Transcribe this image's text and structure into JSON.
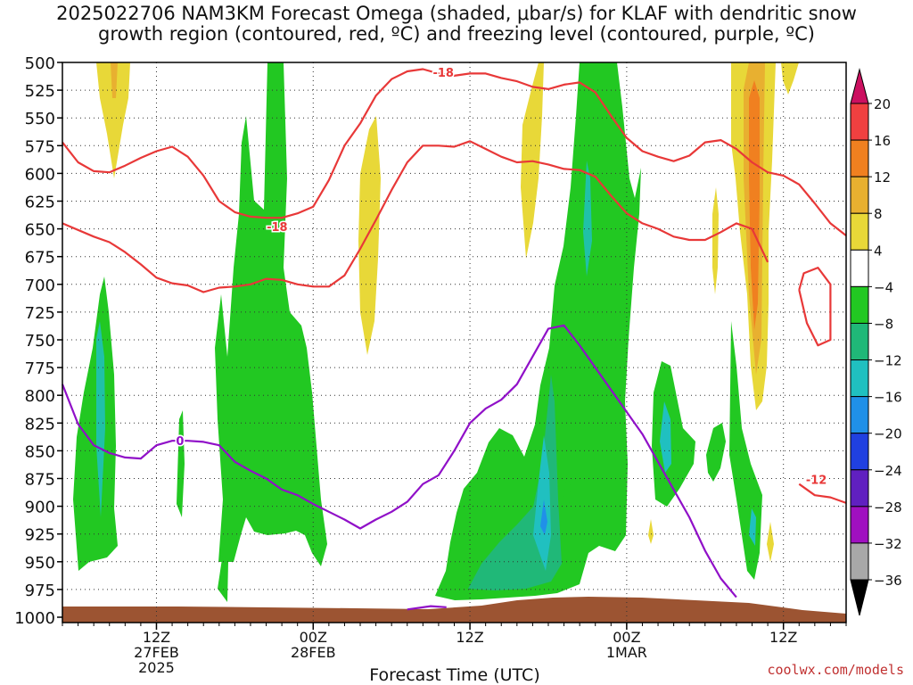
{
  "title_line1": "2025022706 NAM3KM Forecast Omega (shaded, μbar/s) for KLAF with dendritic snow",
  "title_line2": "growth region (contoured, red, ºC) and freezing level (contoured, purple, ºC)",
  "credit": "coolwx.com/models",
  "chart_data": {
    "type": "time-height contour plot",
    "xlabel": "Forecast Time (UTC)",
    "x_range_hours": [
      6,
      56
    ],
    "x_ticks": [
      {
        "hour": 12,
        "lines": [
          "12Z",
          "27FEB",
          "2025"
        ]
      },
      {
        "hour": 22,
        "lines": [
          "00Z",
          "28FEB"
        ]
      },
      {
        "hour": 32,
        "lines": [
          "12Z"
        ]
      },
      {
        "hour": 42,
        "lines": [
          "00Z",
          "1MAR"
        ]
      },
      {
        "hour": 52,
        "lines": [
          "12Z"
        ]
      }
    ],
    "y_range_hpa": [
      500,
      1000
    ],
    "y_ticks": [
      500,
      525,
      550,
      575,
      600,
      625,
      650,
      675,
      700,
      725,
      750,
      775,
      800,
      825,
      850,
      875,
      900,
      925,
      950,
      975,
      1000
    ],
    "grid": "dotted",
    "colorbar": {
      "levels": [
        20,
        16,
        12,
        8,
        4,
        -4,
        -8,
        -12,
        -16,
        -20,
        -24,
        -28,
        -32,
        -36
      ],
      "colors": [
        "#cc1060",
        "#f04040",
        "#f08020",
        "#e8b030",
        "#e8d838",
        "#ffffff",
        "#22c822",
        "#20b878",
        "#20c0c0",
        "#2090e8",
        "#2040e0",
        "#6020c0",
        "#a010c0",
        "#a8a8a8",
        "#000000"
      ]
    },
    "red_contours": [
      {
        "label": "-18",
        "label_pos": [
          19.7,
          648
        ],
        "points": [
          [
            6,
            645
          ],
          [
            8,
            657
          ],
          [
            9,
            662
          ],
          [
            10,
            671
          ],
          [
            11,
            682
          ],
          [
            12,
            694
          ],
          [
            13,
            699
          ],
          [
            14,
            701
          ],
          [
            15,
            707
          ],
          [
            16,
            703
          ],
          [
            17,
            702
          ],
          [
            18,
            700
          ],
          [
            19,
            695
          ],
          [
            20,
            696
          ],
          [
            21,
            700
          ],
          [
            22,
            702
          ],
          [
            23,
            702
          ],
          [
            24,
            692
          ],
          [
            25,
            668
          ],
          [
            26,
            642
          ],
          [
            27,
            615
          ],
          [
            28,
            590
          ],
          [
            29,
            575
          ],
          [
            30,
            575
          ],
          [
            31,
            576
          ],
          [
            32,
            571
          ],
          [
            33,
            578
          ],
          [
            34,
            585
          ],
          [
            35,
            590
          ],
          [
            36,
            589
          ],
          [
            37,
            592
          ],
          [
            38,
            596
          ],
          [
            39,
            597
          ],
          [
            40,
            603
          ],
          [
            41,
            620
          ],
          [
            42,
            636
          ],
          [
            43,
            645
          ],
          [
            44,
            650
          ],
          [
            45,
            657
          ],
          [
            46,
            660
          ],
          [
            47,
            660
          ],
          [
            48,
            653
          ],
          [
            49,
            645
          ],
          [
            50,
            650
          ],
          [
            51,
            680
          ]
        ]
      },
      {
        "label": "-18",
        "label_pos": [
          30.3,
          509
        ],
        "points": [
          [
            6,
            572
          ],
          [
            7,
            590
          ],
          [
            8,
            598
          ],
          [
            9,
            599
          ],
          [
            10,
            593
          ],
          [
            11,
            586
          ],
          [
            12,
            580
          ],
          [
            13,
            576
          ],
          [
            14,
            585
          ],
          [
            15,
            602
          ],
          [
            16,
            625
          ],
          [
            17,
            635
          ],
          [
            18,
            639
          ],
          [
            19,
            640
          ],
          [
            20,
            640
          ],
          [
            21,
            636
          ],
          [
            22,
            630
          ],
          [
            23,
            606
          ],
          [
            24,
            575
          ],
          [
            25,
            555
          ],
          [
            26,
            530
          ],
          [
            27,
            515
          ],
          [
            28,
            508
          ],
          [
            29,
            506
          ],
          [
            30,
            510
          ],
          [
            31,
            512
          ],
          [
            32,
            510
          ],
          [
            33,
            510
          ],
          [
            34,
            514
          ],
          [
            35,
            517
          ],
          [
            36,
            522
          ],
          [
            37,
            524
          ],
          [
            38,
            520
          ],
          [
            39,
            518
          ],
          [
            40,
            527
          ],
          [
            41,
            548
          ],
          [
            42,
            568
          ],
          [
            43,
            580
          ],
          [
            44,
            585
          ],
          [
            45,
            589
          ],
          [
            46,
            584
          ],
          [
            47,
            572
          ],
          [
            48,
            570
          ],
          [
            49,
            578
          ],
          [
            50,
            590
          ],
          [
            51,
            599
          ],
          [
            52,
            602
          ],
          [
            53,
            610
          ],
          [
            54,
            627
          ],
          [
            55,
            645
          ],
          [
            56,
            656
          ]
        ]
      },
      {
        "label": "-12",
        "label_pos": [
          54.1,
          876
        ],
        "points": [
          [
            53,
            880
          ],
          [
            54,
            890
          ],
          [
            55,
            892
          ],
          [
            56,
            897
          ]
        ]
      },
      {
        "label": "",
        "points": [
          [
            53.0,
            705
          ],
          [
            53.3,
            690
          ],
          [
            54.2,
            685
          ],
          [
            55.0,
            700
          ],
          [
            55.0,
            750
          ],
          [
            54.2,
            755
          ],
          [
            53.5,
            735
          ],
          [
            53.0,
            705
          ]
        ]
      }
    ],
    "purple_contours": [
      {
        "label": "0",
        "label_pos": [
          13.5,
          841
        ],
        "points": [
          [
            6,
            790
          ],
          [
            7,
            826
          ],
          [
            8,
            845
          ],
          [
            9,
            852
          ],
          [
            10,
            856
          ],
          [
            11,
            857
          ],
          [
            12,
            845
          ],
          [
            13,
            841
          ],
          [
            14,
            841
          ],
          [
            15,
            842
          ],
          [
            16,
            845
          ],
          [
            17,
            860
          ],
          [
            18,
            868
          ],
          [
            19,
            875
          ],
          [
            20,
            885
          ],
          [
            21,
            890
          ],
          [
            22,
            898
          ],
          [
            23,
            905
          ],
          [
            24,
            912
          ],
          [
            25,
            920
          ],
          [
            26,
            912
          ],
          [
            27,
            905
          ],
          [
            28,
            896
          ],
          [
            29,
            880
          ],
          [
            30,
            872
          ],
          [
            31,
            850
          ],
          [
            32,
            825
          ],
          [
            33,
            812
          ],
          [
            34,
            804
          ],
          [
            35,
            790
          ],
          [
            36,
            765
          ],
          [
            37,
            740
          ],
          [
            38,
            737
          ],
          [
            39,
            755
          ],
          [
            40,
            775
          ],
          [
            41,
            795
          ],
          [
            42,
            815
          ],
          [
            43,
            835
          ],
          [
            44,
            860
          ],
          [
            45,
            885
          ],
          [
            46,
            910
          ],
          [
            47,
            940
          ],
          [
            48,
            965
          ],
          [
            49,
            982
          ]
        ]
      },
      {
        "label": "",
        "points": [
          [
            28,
            993
          ],
          [
            29.5,
            990
          ],
          [
            30.5,
            991
          ]
        ]
      }
    ],
    "terrain": "brown surface band near 990-1000 hPa"
  }
}
